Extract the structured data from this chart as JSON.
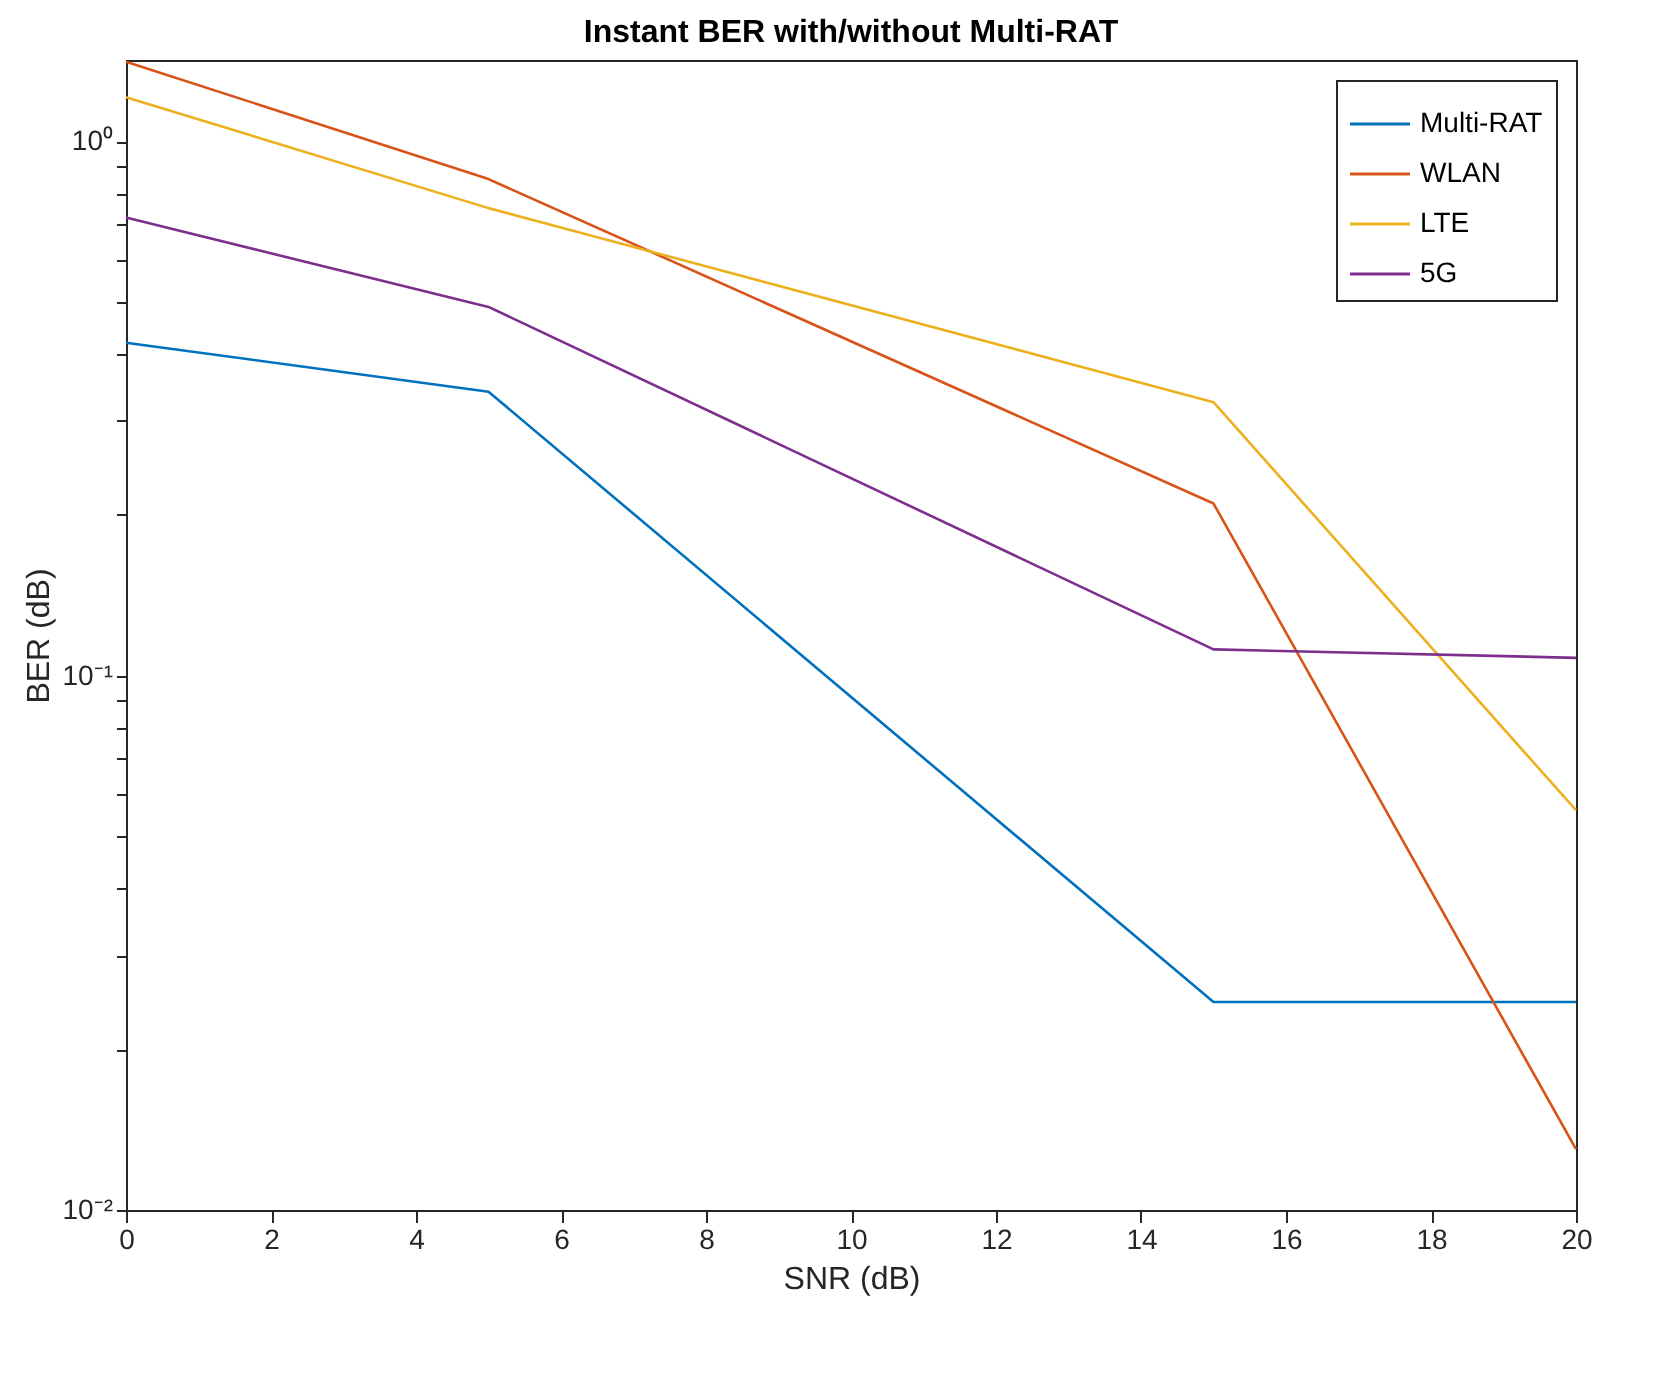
{
  "chart_data": {
    "type": "line",
    "title": "Instant BER with/without Multi-RAT",
    "xlabel": "SNR (dB)",
    "ylabel": "BER (dB)",
    "x": [
      0,
      5,
      15,
      20
    ],
    "series": [
      {
        "name": "Multi-RAT",
        "color": "#0072bd",
        "values": [
          0.42,
          0.34,
          0.0245,
          0.0245
        ]
      },
      {
        "name": "WLAN",
        "color": "#d95319",
        "values": [
          1.41,
          0.85,
          0.21,
          0.013
        ]
      },
      {
        "name": "LTE",
        "color": "#edb120",
        "values": [
          1.21,
          0.75,
          0.325,
          0.056
        ]
      },
      {
        "name": "5G",
        "color": "#7e2f8e",
        "values": [
          0.72,
          0.49,
          0.112,
          0.108
        ]
      }
    ],
    "log": "y",
    "xlim": [
      0,
      20
    ],
    "xticks": [
      0,
      2,
      4,
      6,
      8,
      10,
      12,
      14,
      16,
      18,
      20
    ],
    "ylim": [
      0.01,
      1.42
    ],
    "yticks": [
      {
        "value": 0.01,
        "label": "10⁻²"
      },
      {
        "value": 0.02,
        "label": null
      },
      {
        "value": 0.03,
        "label": null
      },
      {
        "value": 0.04,
        "label": null
      },
      {
        "value": 0.05,
        "label": null
      },
      {
        "value": 0.06,
        "label": null
      },
      {
        "value": 0.07,
        "label": null
      },
      {
        "value": 0.08,
        "label": null
      },
      {
        "value": 0.09,
        "label": null
      },
      {
        "value": 0.1,
        "label": "10⁻¹"
      },
      {
        "value": 0.2,
        "label": null
      },
      {
        "value": 0.3,
        "label": null
      },
      {
        "value": 0.4,
        "label": null
      },
      {
        "value": 0.5,
        "label": null
      },
      {
        "value": 0.6,
        "label": null
      },
      {
        "value": 0.7,
        "label": null
      },
      {
        "value": 0.8,
        "label": null
      },
      {
        "value": 0.9,
        "label": null
      },
      {
        "value": 1,
        "label": "10⁰"
      }
    ],
    "grid": false,
    "legend": "top right",
    "line_style": "solid"
  }
}
